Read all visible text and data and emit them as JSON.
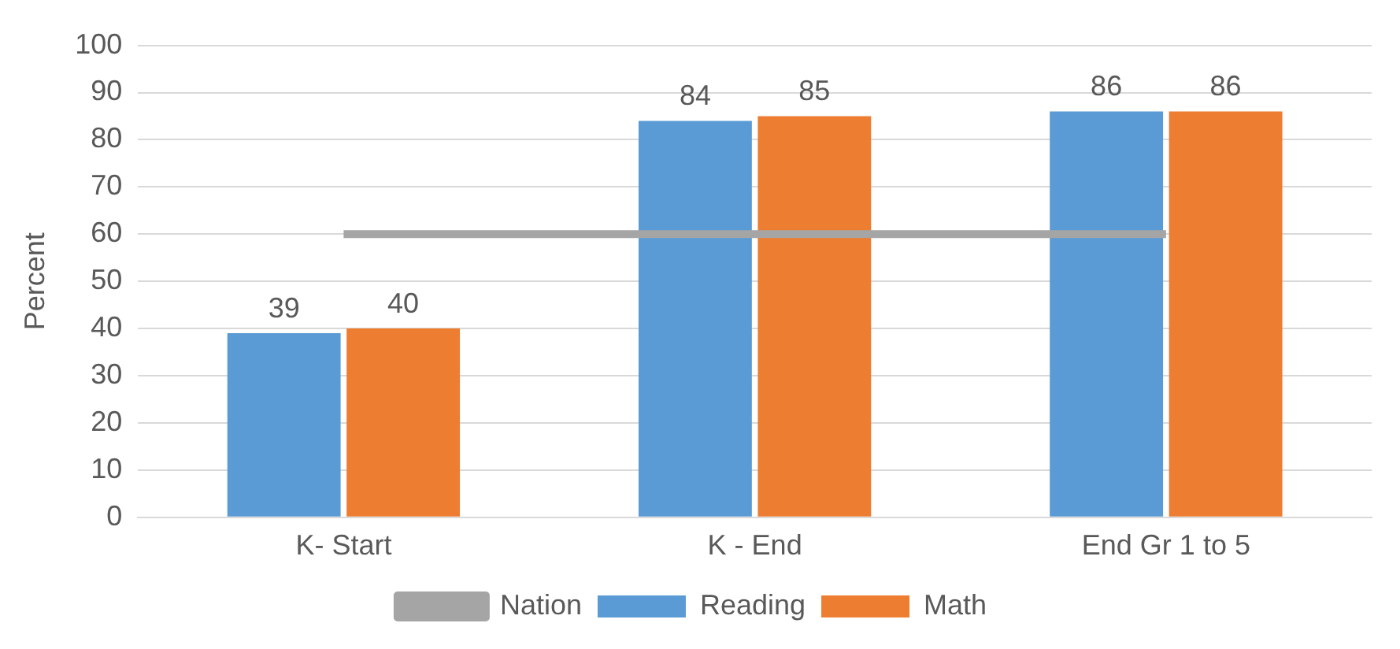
{
  "chart_data": {
    "type": "bar",
    "ylabel": "Percent",
    "categories": [
      "K- Start",
      "K - End",
      "End Gr 1 to 5"
    ],
    "series": [
      {
        "name": "Reading",
        "color": "#5b9bd5",
        "values": [
          39,
          84,
          86
        ],
        "value_labels": [
          "39",
          "84",
          "86"
        ]
      },
      {
        "name": "Math",
        "color": "#ed7d31",
        "values": [
          40,
          85,
          86
        ],
        "value_labels": [
          "40",
          "85",
          "86"
        ]
      },
      {
        "name": "Nation",
        "type": "line",
        "color": "#a5a5a5",
        "values": [
          60,
          60,
          60
        ]
      }
    ],
    "ylim": [
      0,
      100
    ],
    "yticks": [
      0,
      10,
      20,
      30,
      40,
      50,
      60,
      70,
      80,
      90,
      100
    ],
    "grid": "y",
    "legend": "bottom",
    "marker": "none"
  }
}
